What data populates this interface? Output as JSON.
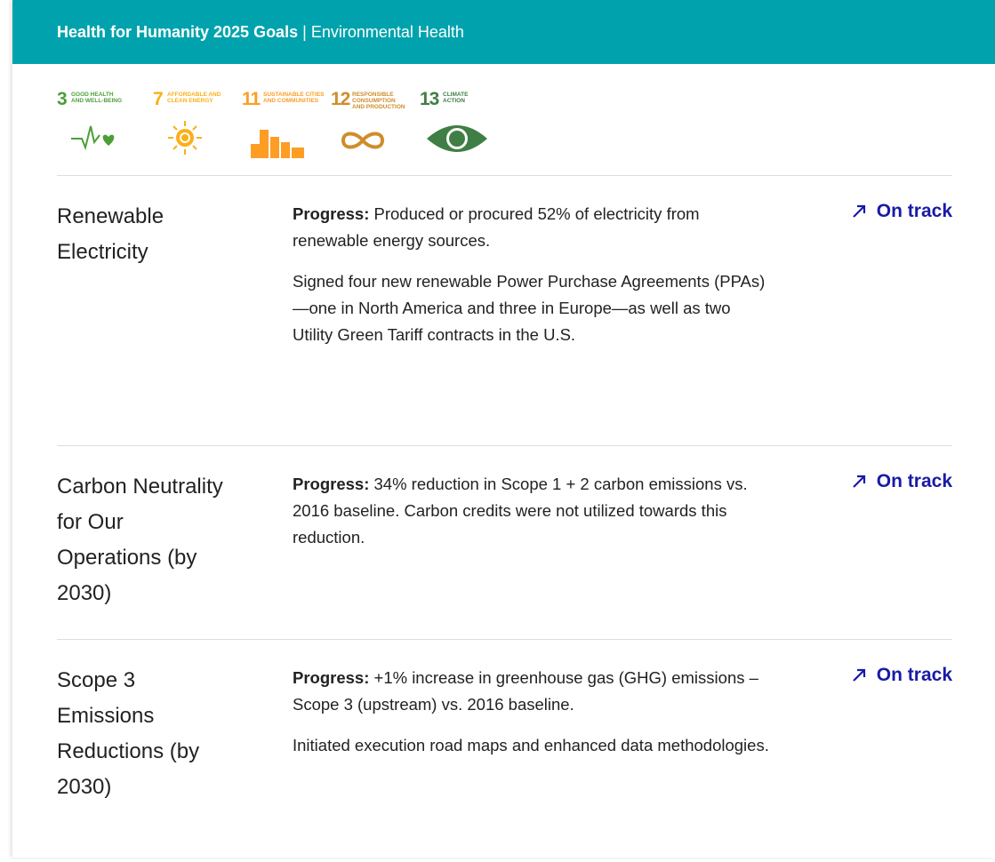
{
  "header": {
    "title": "Health for Humanity 2025 Goals",
    "separator": "|",
    "subtitle": "Environmental Health"
  },
  "sdg_icons": [
    {
      "number": "3",
      "label_lines": [
        "GOOD HEALTH",
        "AND WELL-BEING"
      ]
    },
    {
      "number": "7",
      "label_lines": [
        "AFFORDABLE AND",
        "CLEAN ENERGY"
      ]
    },
    {
      "number": "11",
      "label_lines": [
        "SUSTAINABLE CITIES",
        "AND COMMUNITIES"
      ]
    },
    {
      "number": "12",
      "label_lines": [
        "RESPONSIBLE",
        "CONSUMPTION",
        "AND PRODUCTION"
      ]
    },
    {
      "number": "13",
      "label_lines": [
        "CLIMATE",
        "ACTION"
      ]
    }
  ],
  "goals": [
    {
      "title": "Renewable Electricity",
      "progress_label": "Progress:",
      "progress_text": "Produced or procured 52% of electricity from renewable energy sources.",
      "details": "Signed four new renewable Power Purchase Agreements (PPAs)—one in North America and three in Europe—as well as two Utility Green Tariff contracts in the U.S.",
      "status": "On track"
    },
    {
      "title": "Carbon Neutrality for Our Operations (by 2030)",
      "progress_label": "Progress:",
      "progress_text": "34% reduction in Scope 1 + 2 carbon emissions vs. 2016 baseline. Carbon credits were not utilized towards this reduction.",
      "status": "On track"
    },
    {
      "title": "Scope 3 Emissions Reductions (by 2030)",
      "progress_label": "Progress:",
      "progress_text": "+1% increase in greenhouse gas (GHG) emissions – Scope 3 (upstream) vs. 2016 baseline.",
      "details": "Initiated execution road maps and enhanced data methodologies.",
      "status": "On track"
    }
  ]
}
